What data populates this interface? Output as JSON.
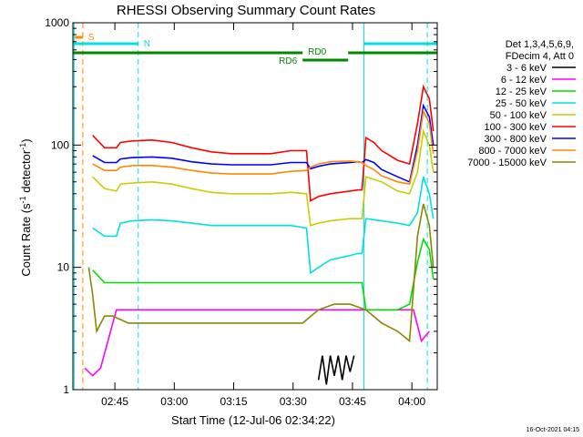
{
  "chart_data": {
    "type": "line",
    "title": "RHESSI Observing Summary Count Rates",
    "xlabel": "Start Time (12-Jul-06 02:34:22)",
    "ylabel_parts": [
      "Count Rate (s",
      "-1",
      " detector",
      "-1",
      ")"
    ],
    "x_unit": "minutes after 02:34:22",
    "xlim": [
      0,
      92
    ],
    "ylim": [
      1,
      1000
    ],
    "yscale": "log",
    "grid": false,
    "legend_position": "right",
    "x_ticks": [
      {
        "label": "02:45",
        "t": 10.6
      },
      {
        "label": "03:00",
        "t": 25.6
      },
      {
        "label": "03:15",
        "t": 40.6
      },
      {
        "label": "03:30",
        "t": 55.6
      },
      {
        "label": "03:45",
        "t": 70.6
      },
      {
        "label": "04:00",
        "t": 85.6
      }
    ],
    "y_ticks": [
      {
        "label": "1",
        "v": 1
      },
      {
        "label": "10",
        "v": 10
      },
      {
        "label": "100",
        "v": 100
      },
      {
        "label": "1000",
        "v": 1000
      }
    ],
    "legend_header": [
      "Det 1,3,4,5,6,9,",
      "FDecim 4, Att 0"
    ],
    "series": [
      {
        "name": "3 - 6 keV",
        "color": "#000000",
        "x": [
          62,
          63,
          64,
          65,
          66,
          67,
          68,
          69,
          70,
          71
        ],
        "y": [
          1.2,
          1.9,
          1.1,
          1.9,
          1.3,
          1.9,
          1.2,
          1.9,
          1.4,
          1.9
        ]
      },
      {
        "name": "6 - 12 keV",
        "color": "#ff00ff",
        "x": [
          3,
          5,
          7,
          11,
          14,
          18,
          22,
          26,
          30,
          34,
          38,
          42,
          46,
          50,
          54,
          58,
          62,
          66,
          70,
          74,
          78,
          82,
          86,
          88,
          90
        ],
        "y": [
          1.5,
          1.3,
          1.5,
          4.5,
          4.5,
          4.5,
          4.5,
          4.5,
          4.5,
          4.5,
          4.5,
          4.5,
          4.5,
          4.5,
          4.5,
          4.5,
          4.5,
          4.5,
          4.5,
          4.5,
          4.5,
          4.5,
          4.5,
          2.5,
          3.0
        ]
      },
      {
        "name": "12 - 25 keV",
        "color": "#00dd00",
        "x": [
          5,
          8,
          11,
          15,
          20,
          25,
          30,
          35,
          40,
          45,
          50,
          55,
          59,
          60,
          65,
          70,
          73,
          74,
          78,
          82,
          85,
          87,
          88.5,
          90,
          91
        ],
        "y": [
          9.5,
          7.5,
          7.5,
          7.5,
          7.5,
          7.5,
          7.5,
          7.5,
          7.5,
          7.5,
          7.5,
          7.5,
          7.5,
          7.5,
          7.5,
          7.5,
          7.5,
          4.5,
          4.5,
          4.5,
          5.0,
          11,
          17,
          14,
          8
        ]
      },
      {
        "name": "25 - 50 keV",
        "color": "#00e0e0",
        "x": [
          5,
          8,
          11,
          12,
          15,
          20,
          25,
          30,
          35,
          40,
          45,
          50,
          55,
          59,
          60,
          62,
          65,
          70,
          72,
          73,
          74,
          78,
          82,
          85,
          87,
          88.5,
          90,
          91
        ],
        "y": [
          21,
          18,
          18,
          23,
          24,
          24.5,
          24,
          23,
          22,
          22,
          22,
          22,
          22,
          21,
          9,
          10,
          11.5,
          12.5,
          13,
          13,
          25,
          24,
          23,
          22,
          28,
          55,
          40,
          25
        ]
      },
      {
        "name": "50 - 100 keV",
        "color": "#cccc00",
        "x": [
          5,
          8,
          11,
          12,
          15,
          20,
          25,
          30,
          35,
          40,
          45,
          50,
          55,
          59,
          60,
          62,
          65,
          70,
          72,
          73,
          74,
          78,
          82,
          85,
          87,
          88.5,
          90,
          91
        ],
        "y": [
          55,
          44,
          42,
          48,
          49,
          50,
          48,
          44,
          41,
          40,
          40,
          40,
          41,
          40,
          22,
          23,
          24,
          25,
          25,
          25,
          55,
          50,
          42,
          40,
          60,
          130,
          100,
          60
        ]
      },
      {
        "name": "100 - 300 keV",
        "color": "#ff0000",
        "x": [
          5,
          8,
          11,
          12,
          15,
          20,
          25,
          30,
          35,
          40,
          45,
          50,
          55,
          59,
          60,
          62,
          65,
          70,
          72,
          73,
          74,
          76,
          78,
          82,
          85,
          87,
          88.5,
          90,
          91
        ],
        "y": [
          120,
          95,
          95,
          105,
          108,
          110,
          105,
          95,
          88,
          85,
          85,
          85,
          90,
          90,
          35,
          38,
          40,
          42,
          43,
          43,
          115,
          105,
          90,
          75,
          70,
          150,
          300,
          240,
          130
        ]
      },
      {
        "name": "300 - 800 keV",
        "color": "#0000ff",
        "x": [
          5,
          8,
          11,
          12,
          15,
          20,
          25,
          30,
          35,
          40,
          45,
          50,
          55,
          59,
          60,
          62,
          65,
          70,
          72,
          73,
          74,
          76,
          78,
          82,
          85,
          87,
          88.5,
          90,
          91
        ],
        "y": [
          82,
          72,
          72,
          77,
          79,
          80,
          78,
          73,
          70,
          69,
          69,
          69,
          72,
          72,
          64,
          67,
          70,
          72,
          73,
          72,
          76,
          72,
          63,
          55,
          50,
          100,
          210,
          170,
          100
        ]
      },
      {
        "name": "800 - 7000 keV",
        "color": "#ff8800",
        "x": [
          5,
          8,
          11,
          12,
          15,
          20,
          25,
          30,
          35,
          40,
          45,
          50,
          55,
          59,
          60,
          62,
          65,
          70,
          72,
          73,
          74,
          76,
          78,
          82,
          85,
          87,
          88.5,
          90,
          91
        ],
        "y": [
          70,
          62,
          62,
          66,
          68,
          68,
          66,
          62,
          59,
          58,
          58,
          58,
          61,
          62,
          66,
          70,
          73,
          74,
          73,
          72,
          68,
          63,
          56,
          50,
          48,
          90,
          190,
          150,
          85
        ]
      },
      {
        "name": "7000 - 15000 keV",
        "color": "#888800",
        "x": [
          4,
          5,
          6,
          8,
          10,
          14,
          18,
          22,
          26,
          30,
          34,
          38,
          42,
          46,
          50,
          54,
          58,
          62,
          66,
          70,
          74,
          78,
          82,
          85,
          87,
          88.5,
          90,
          91
        ],
        "y": [
          10,
          6,
          3,
          4,
          4,
          3.5,
          3.5,
          3.5,
          3.5,
          3.5,
          3.5,
          3.5,
          3.5,
          3.5,
          3.5,
          3.5,
          3.5,
          4.5,
          5,
          5,
          4.5,
          3.5,
          3,
          2.5,
          18,
          33,
          22,
          10
        ]
      }
    ],
    "annotations": {
      "saa_label": "S",
      "night_label": "N",
      "rd0_label": "RD0",
      "rd6_label": "RD6",
      "saa_interval": [
        0.5,
        2.5
      ],
      "saa_line_t": 2.5,
      "night_interval": [
        0,
        16.5
      ],
      "night_end_line_t": 16.5,
      "night2_interval": [
        73.5,
        92
      ],
      "night2_start_line_t": 73.5,
      "night2_end_line_t": 89.5,
      "cyan_solid_lines_t": [
        0.3,
        73.5
      ],
      "rd6_interval": [
        0,
        58
      ],
      "rd0_interval": [
        58,
        69.5
      ],
      "rd6b_interval": [
        69.5,
        92
      ]
    },
    "timestamp": "16-Oct-2021 04:15"
  }
}
